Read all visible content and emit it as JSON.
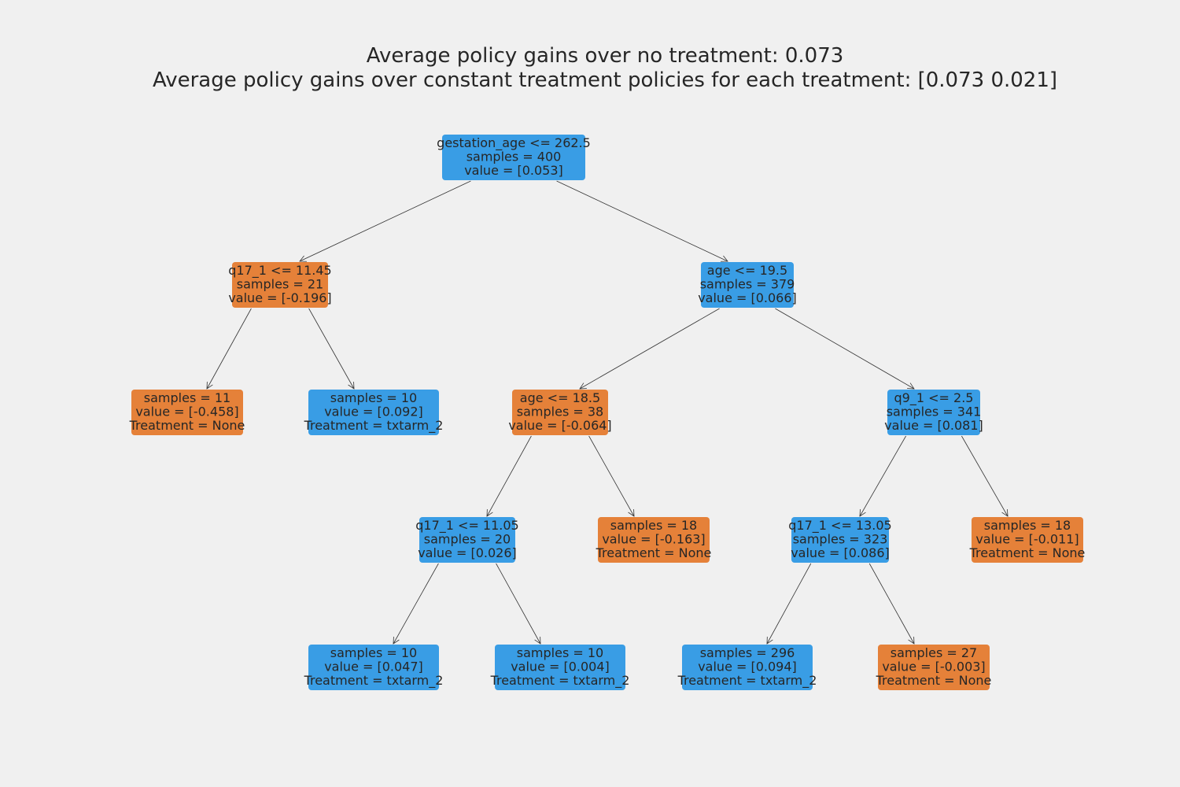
{
  "title": {
    "line1": "Average policy gains over no treatment: 0.073",
    "line2": "Average policy gains over constant treatment policies for each treatment: [0.073 0.021]"
  },
  "colors": {
    "background": "#f0f0f0",
    "treatment": "#399de5",
    "no_treatment": "#e58139",
    "text": "#262626",
    "edge": "#333333"
  },
  "tree": {
    "nodes": [
      {
        "id": "n0",
        "lines": [
          "gestation_age <= 262.5",
          "samples = 400",
          "value = [0.053]"
        ],
        "class": "treatment"
      },
      {
        "id": "n1",
        "lines": [
          "q17_1 <= 11.45",
          "samples = 21",
          "value = [-0.196]"
        ],
        "class": "no_treatment"
      },
      {
        "id": "n2",
        "lines": [
          "age <= 19.5",
          "samples = 379",
          "value = [0.066]"
        ],
        "class": "treatment"
      },
      {
        "id": "n3",
        "lines": [
          "samples = 11",
          "value = [-0.458]",
          "Treatment = None"
        ],
        "class": "no_treatment"
      },
      {
        "id": "n4",
        "lines": [
          "samples = 10",
          "value = [0.092]",
          "Treatment = txtarm_2"
        ],
        "class": "treatment"
      },
      {
        "id": "n5",
        "lines": [
          "age <= 18.5",
          "samples = 38",
          "value = [-0.064]"
        ],
        "class": "no_treatment"
      },
      {
        "id": "n6",
        "lines": [
          "q9_1 <= 2.5",
          "samples = 341",
          "value = [0.081]"
        ],
        "class": "treatment"
      },
      {
        "id": "n7",
        "lines": [
          "q17_1 <= 11.05",
          "samples = 20",
          "value = [0.026]"
        ],
        "class": "treatment"
      },
      {
        "id": "n8",
        "lines": [
          "samples = 18",
          "value = [-0.163]",
          "Treatment = None"
        ],
        "class": "no_treatment"
      },
      {
        "id": "n9",
        "lines": [
          "q17_1 <= 13.05",
          "samples = 323",
          "value = [0.086]"
        ],
        "class": "treatment"
      },
      {
        "id": "n10",
        "lines": [
          "samples = 18",
          "value = [-0.011]",
          "Treatment = None"
        ],
        "class": "no_treatment"
      },
      {
        "id": "n11",
        "lines": [
          "samples = 10",
          "value = [0.047]",
          "Treatment = txtarm_2"
        ],
        "class": "treatment"
      },
      {
        "id": "n12",
        "lines": [
          "samples = 10",
          "value = [0.004]",
          "Treatment = txtarm_2"
        ],
        "class": "treatment"
      },
      {
        "id": "n13",
        "lines": [
          "samples = 296",
          "value = [0.094]",
          "Treatment = txtarm_2"
        ],
        "class": "treatment"
      },
      {
        "id": "n14",
        "lines": [
          "samples = 27",
          "value = [-0.003]",
          "Treatment = None"
        ],
        "class": "no_treatment"
      }
    ],
    "edges": [
      [
        "n0",
        "n1"
      ],
      [
        "n0",
        "n2"
      ],
      [
        "n1",
        "n3"
      ],
      [
        "n1",
        "n4"
      ],
      [
        "n2",
        "n5"
      ],
      [
        "n2",
        "n6"
      ],
      [
        "n5",
        "n7"
      ],
      [
        "n5",
        "n8"
      ],
      [
        "n6",
        "n9"
      ],
      [
        "n6",
        "n10"
      ],
      [
        "n7",
        "n11"
      ],
      [
        "n7",
        "n12"
      ],
      [
        "n9",
        "n13"
      ],
      [
        "n9",
        "n14"
      ]
    ]
  }
}
